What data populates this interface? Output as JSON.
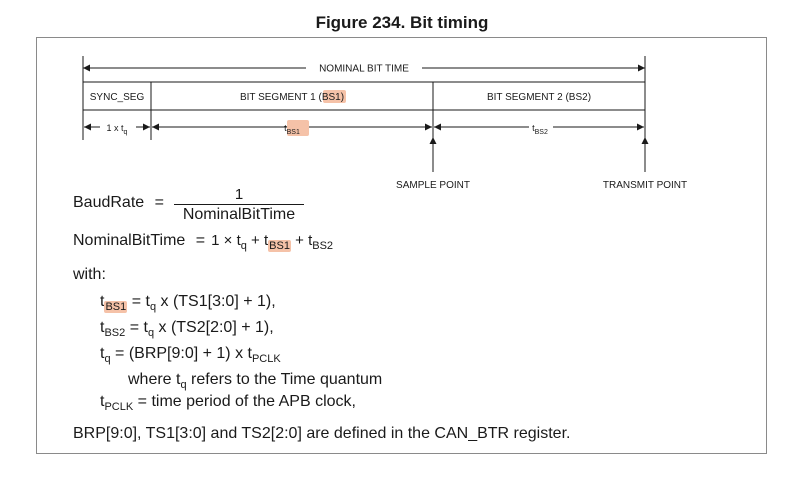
{
  "title": "Figure 234. Bit timing",
  "diagram": {
    "nominal_bit_time": "NOMINAL BIT TIME",
    "seg_sync": "SYNC_SEG",
    "seg_bs1_prefix": "BIT SEGMENT 1 (",
    "seg_bs1_hl": "BS1",
    "seg_bs1_suffix": ")",
    "seg_bs2": "BIT SEGMENT 2 (BS2)",
    "tq_label": "1 x t",
    "tq_sub": "q",
    "tbs1_t": "t",
    "tbs1_sub": "BS1",
    "tbs2_t": "t",
    "tbs2_sub": "BS2",
    "sample_point": "SAMPLE POINT",
    "transmit_point": "TRANSMIT POINT"
  },
  "formulas": {
    "baud_lhs": "BaudRate",
    "eq": "=",
    "baud_num": "1",
    "baud_den": "NominalBitTime",
    "nbt_lhs": "NominalBitTime",
    "nbt_one": "1",
    "times": "×",
    "t": "t",
    "q": "q",
    "plus": "+",
    "bs1": "BS1",
    "bs2": "BS2"
  },
  "text": {
    "with": "with:",
    "l1_a": "t",
    "l1_sub": "BS1",
    "l1_b": " = t",
    "l1_q": "q",
    "l1_c": " x (TS1[3:0] + 1),",
    "l2_a": "t",
    "l2_sub": "BS2",
    "l2_b": " = t",
    "l2_q": "q",
    "l2_c": " x (TS2[2:0] + 1),",
    "l3_a": "t",
    "l3_q": "q",
    "l3_b": " = (BRP[9:0] + 1) x t",
    "l3_sub": "PCLK",
    "l4_a": "where t",
    "l4_q": "q",
    "l4_b": " refers to the Time quantum",
    "l5_a": "t",
    "l5_sub": "PCLK",
    "l5_b": " = time period of the APB clock,",
    "footer": "BRP[9:0], TS1[3:0] and TS2[2:0] are defined in the CAN_BTR register."
  }
}
